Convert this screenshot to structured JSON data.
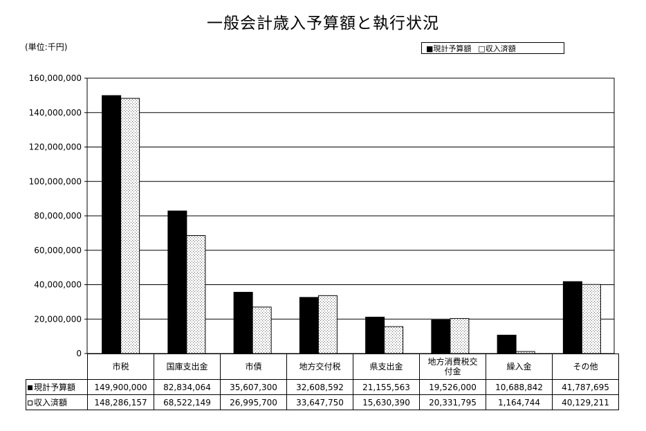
{
  "title": "一般会計歳入予算額と執行状況",
  "unit_label": "(単位:千円)",
  "legend": {
    "budget": "■現計予算額",
    "received": "□収入済額"
  },
  "table": {
    "row_budget_label": "現計予算額",
    "row_received_label": "収入済額",
    "budget_values": [
      "149,900,000",
      "82,834,064",
      "35,607,300",
      "32,608,592",
      "21,155,563",
      "19,526,000",
      "10,688,842",
      "41,787,695"
    ],
    "received_values": [
      "148,286,157",
      "68,522,149",
      "26,995,700",
      "33,647,750",
      "15,630,390",
      "20,331,795",
      "1,164,744",
      "40,129,211"
    ]
  },
  "chart_data": {
    "type": "bar",
    "title": "一般会計歳入予算額と執行状況",
    "categories": [
      "市税",
      "国庫支出金",
      "市債",
      "地方交付税",
      "県支出金",
      "地方消費税交付金",
      "繰入金",
      "その他"
    ],
    "series": [
      {
        "name": "現計予算額",
        "values": [
          149900000,
          82834064,
          35607300,
          32608592,
          21155563,
          19526000,
          10688842,
          41787695
        ],
        "color": "#000000"
      },
      {
        "name": "収入済額",
        "values": [
          148286157,
          68522149,
          26995700,
          33647750,
          15630390,
          20331795,
          1164744,
          40129211
        ],
        "color": "#ffffff"
      }
    ],
    "ylim": [
      0,
      160000000
    ],
    "yticks": [
      "0",
      "20,000,000",
      "40,000,000",
      "60,000,000",
      "80,000,000",
      "100,000,000",
      "120,000,000",
      "140,000,000",
      "160,000,000"
    ],
    "grid": true,
    "legend_position": "top-right"
  }
}
